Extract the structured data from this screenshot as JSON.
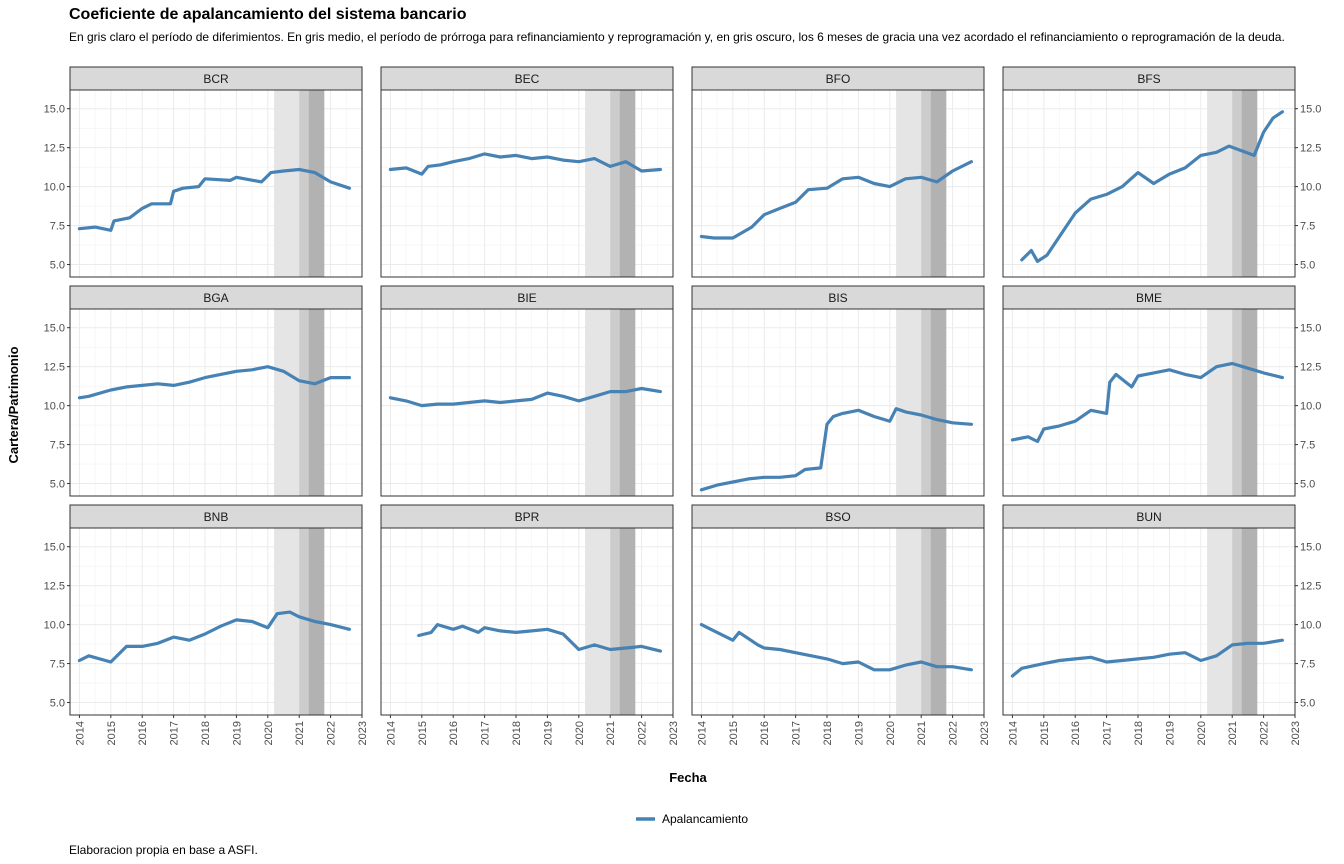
{
  "title": "Coeficiente de apalancamiento del sistema bancario",
  "subtitle": "En gris claro el período de diferimientos. En gris medio, el período de prórroga para refinanciamiento y reprogramación y, en gris oscuro, los 6 meses de gracia una vez acordado el refinanciamiento o reprogramación de la deuda.",
  "caption": "Elaboracion propia en base a ASFI.",
  "colors": {
    "line": "#4682b4",
    "period_light": "#e5e5e5",
    "period_medium": "#cccccc",
    "period_dark": "#b2b2b2",
    "strip": "#d9d9d9",
    "grid": "#ebebeb"
  },
  "chart_data": {
    "type": "line",
    "layout": "facet-grid 3x4",
    "xlabel": "Fecha",
    "ylabel": "Cartera/Patrimonio",
    "xlim": [
      2013.7,
      2023.0
    ],
    "ylim": [
      4.2,
      16.2
    ],
    "x_ticks": [
      "2014",
      "2015",
      "2016",
      "2017",
      "2018",
      "2019",
      "2020",
      "2021",
      "2022",
      "2023"
    ],
    "y_ticks": [
      "5.0",
      "7.5",
      "10.0",
      "12.5",
      "15.0"
    ],
    "grid": true,
    "legend": {
      "position": "bottom",
      "entries": [
        "Apalancamiento"
      ]
    },
    "shaded_periods": [
      {
        "shade": "light",
        "from": 2020.2,
        "to": 2021.0
      },
      {
        "shade": "medium",
        "from": 2021.0,
        "to": 2021.3
      },
      {
        "shade": "dark",
        "from": 2021.3,
        "to": 2021.8
      }
    ],
    "panels": [
      {
        "name": "BCR",
        "x": [
          2014.0,
          2014.5,
          2015.0,
          2015.1,
          2015.6,
          2016.0,
          2016.3,
          2016.9,
          2017.0,
          2017.3,
          2017.8,
          2018.0,
          2018.8,
          2019.0,
          2019.8,
          2020.1,
          2020.5,
          2021.0,
          2021.5,
          2022.0,
          2022.6
        ],
        "y": [
          7.3,
          7.4,
          7.2,
          7.8,
          8.0,
          8.6,
          8.9,
          8.9,
          9.7,
          9.9,
          10.0,
          10.5,
          10.4,
          10.6,
          10.3,
          10.9,
          11.0,
          11.1,
          10.9,
          10.3,
          9.9
        ]
      },
      {
        "name": "BEC",
        "x": [
          2014.0,
          2014.5,
          2015.0,
          2015.2,
          2015.6,
          2016.0,
          2016.5,
          2017.0,
          2017.5,
          2018.0,
          2018.5,
          2019.0,
          2019.5,
          2020.0,
          2020.5,
          2021.0,
          2021.5,
          2022.0,
          2022.6
        ],
        "y": [
          11.1,
          11.2,
          10.8,
          11.3,
          11.4,
          11.6,
          11.8,
          12.1,
          11.9,
          12.0,
          11.8,
          11.9,
          11.7,
          11.6,
          11.8,
          11.3,
          11.6,
          11.0,
          11.1
        ]
      },
      {
        "name": "BFO",
        "x": [
          2014.0,
          2014.4,
          2015.0,
          2015.6,
          2016.0,
          2016.5,
          2017.0,
          2017.4,
          2018.0,
          2018.5,
          2019.0,
          2019.5,
          2020.0,
          2020.5,
          2021.0,
          2021.5,
          2022.0,
          2022.6
        ],
        "y": [
          6.8,
          6.7,
          6.7,
          7.4,
          8.2,
          8.6,
          9.0,
          9.8,
          9.9,
          10.5,
          10.6,
          10.2,
          10.0,
          10.5,
          10.6,
          10.3,
          11.0,
          11.6
        ]
      },
      {
        "name": "BFS",
        "x": [
          2014.3,
          2014.6,
          2014.8,
          2015.1,
          2015.5,
          2016.0,
          2016.5,
          2017.0,
          2017.5,
          2018.0,
          2018.5,
          2019.0,
          2019.5,
          2020.0,
          2020.5,
          2020.9,
          2021.3,
          2021.7,
          2022.0,
          2022.3,
          2022.6
        ],
        "y": [
          5.3,
          5.9,
          5.2,
          5.6,
          6.8,
          8.3,
          9.2,
          9.5,
          10.0,
          10.9,
          10.2,
          10.8,
          11.2,
          12.0,
          12.2,
          12.6,
          12.3,
          12.0,
          13.5,
          14.4,
          14.8
        ]
      },
      {
        "name": "BGA",
        "x": [
          2014.0,
          2014.3,
          2015.0,
          2015.5,
          2016.0,
          2016.5,
          2017.0,
          2017.5,
          2018.0,
          2018.5,
          2019.0,
          2019.5,
          2020.0,
          2020.5,
          2021.0,
          2021.5,
          2022.0,
          2022.6
        ],
        "y": [
          10.5,
          10.6,
          11.0,
          11.2,
          11.3,
          11.4,
          11.3,
          11.5,
          11.8,
          12.0,
          12.2,
          12.3,
          12.5,
          12.2,
          11.6,
          11.4,
          11.8,
          11.8
        ]
      },
      {
        "name": "BIE",
        "x": [
          2014.0,
          2014.5,
          2015.0,
          2015.5,
          2016.0,
          2016.5,
          2017.0,
          2017.5,
          2018.0,
          2018.5,
          2019.0,
          2019.5,
          2020.0,
          2020.5,
          2021.0,
          2021.5,
          2022.0,
          2022.6
        ],
        "y": [
          10.5,
          10.3,
          10.0,
          10.1,
          10.1,
          10.2,
          10.3,
          10.2,
          10.3,
          10.4,
          10.8,
          10.6,
          10.3,
          10.6,
          10.9,
          10.9,
          11.1,
          10.9
        ]
      },
      {
        "name": "BIS",
        "x": [
          2014.0,
          2014.5,
          2015.0,
          2015.5,
          2016.0,
          2016.5,
          2017.0,
          2017.3,
          2017.8,
          2018.0,
          2018.2,
          2018.5,
          2019.0,
          2019.5,
          2020.0,
          2020.2,
          2020.5,
          2021.0,
          2021.5,
          2022.0,
          2022.6
        ],
        "y": [
          4.6,
          4.9,
          5.1,
          5.3,
          5.4,
          5.4,
          5.5,
          5.9,
          6.0,
          8.8,
          9.3,
          9.5,
          9.7,
          9.3,
          9.0,
          9.8,
          9.6,
          9.4,
          9.1,
          8.9,
          8.8
        ]
      },
      {
        "name": "BME",
        "x": [
          2014.0,
          2014.5,
          2014.8,
          2015.0,
          2015.5,
          2016.0,
          2016.5,
          2017.0,
          2017.1,
          2017.3,
          2017.8,
          2018.0,
          2018.5,
          2019.0,
          2019.5,
          2020.0,
          2020.5,
          2021.0,
          2021.5,
          2022.0,
          2022.6
        ],
        "y": [
          7.8,
          8.0,
          7.7,
          8.5,
          8.7,
          9.0,
          9.7,
          9.5,
          11.5,
          12.0,
          11.2,
          11.9,
          12.1,
          12.3,
          12.0,
          11.8,
          12.5,
          12.7,
          12.4,
          12.1,
          11.8
        ]
      },
      {
        "name": "BNB",
        "x": [
          2014.0,
          2014.3,
          2015.0,
          2015.5,
          2016.0,
          2016.5,
          2017.0,
          2017.5,
          2018.0,
          2018.5,
          2019.0,
          2019.5,
          2020.0,
          2020.3,
          2020.7,
          2021.0,
          2021.5,
          2022.0,
          2022.6
        ],
        "y": [
          7.7,
          8.0,
          7.6,
          8.6,
          8.6,
          8.8,
          9.2,
          9.0,
          9.4,
          9.9,
          10.3,
          10.2,
          9.8,
          10.7,
          10.8,
          10.5,
          10.2,
          10.0,
          9.7
        ]
      },
      {
        "name": "BPR",
        "x": [
          2014.9,
          2015.3,
          2015.5,
          2016.0,
          2016.3,
          2016.8,
          2017.0,
          2017.5,
          2018.0,
          2018.5,
          2019.0,
          2019.5,
          2020.0,
          2020.5,
          2021.0,
          2021.5,
          2022.0,
          2022.6
        ],
        "y": [
          9.3,
          9.5,
          10.0,
          9.7,
          9.9,
          9.5,
          9.8,
          9.6,
          9.5,
          9.6,
          9.7,
          9.4,
          8.4,
          8.7,
          8.4,
          8.5,
          8.6,
          8.3
        ]
      },
      {
        "name": "BSO",
        "x": [
          2014.0,
          2014.3,
          2015.0,
          2015.2,
          2015.8,
          2016.0,
          2016.5,
          2017.0,
          2017.5,
          2018.0,
          2018.5,
          2019.0,
          2019.5,
          2020.0,
          2020.5,
          2021.0,
          2021.5,
          2022.0,
          2022.6
        ],
        "y": [
          10.0,
          9.7,
          9.0,
          9.5,
          8.7,
          8.5,
          8.4,
          8.2,
          8.0,
          7.8,
          7.5,
          7.6,
          7.1,
          7.1,
          7.4,
          7.6,
          7.3,
          7.3,
          7.1
        ]
      },
      {
        "name": "BUN",
        "x": [
          2014.0,
          2014.3,
          2015.0,
          2015.5,
          2016.0,
          2016.5,
          2017.0,
          2017.5,
          2018.0,
          2018.5,
          2019.0,
          2019.5,
          2020.0,
          2020.5,
          2021.0,
          2021.5,
          2022.0,
          2022.6
        ],
        "y": [
          6.7,
          7.2,
          7.5,
          7.7,
          7.8,
          7.9,
          7.6,
          7.7,
          7.8,
          7.9,
          8.1,
          8.2,
          7.7,
          8.0,
          8.7,
          8.8,
          8.8,
          9.0
        ]
      }
    ]
  }
}
